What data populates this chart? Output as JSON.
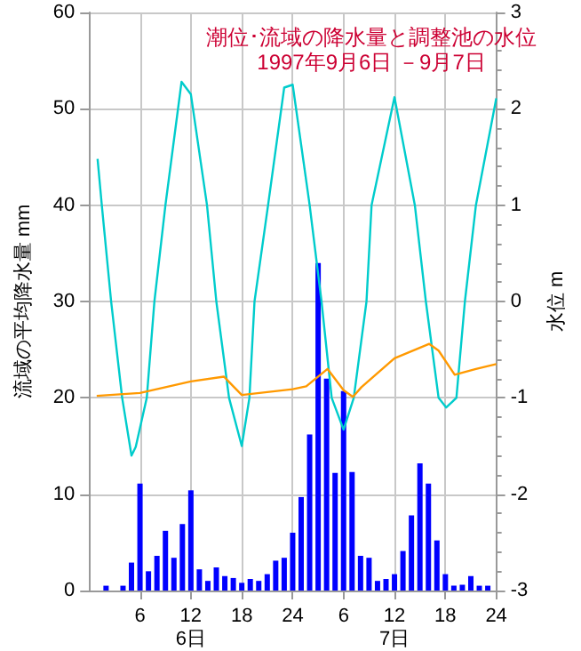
{
  "chart_data": {
    "type": "bar",
    "title": "潮位･流域の降水量と調整池の水位",
    "subtitle": "1997年9月6日 －9月7日",
    "ylabel": "流域の平均降水量 mm",
    "y2label": "水位 m",
    "xlim": [
      "1997-09-06T00:00",
      "1997-09-08T00:00"
    ],
    "xticks": [
      {
        "value": "1997-09-06T06:00",
        "label": "6"
      },
      {
        "value": "1997-09-06T12:00",
        "label": "12\n6日"
      },
      {
        "value": "1997-09-06T18:00",
        "label": "18"
      },
      {
        "value": "1997-09-07T00:00",
        "label": "24"
      },
      {
        "value": "1997-09-07T06:00",
        "label": "6"
      },
      {
        "value": "1997-09-07T12:00",
        "label": "12\n7日"
      },
      {
        "value": "1997-09-07T18:00",
        "label": "18"
      },
      {
        "value": "1997-09-08T00:00",
        "label": "24"
      }
    ],
    "ylim": [
      0,
      60
    ],
    "yticks": [
      0,
      10,
      20,
      30,
      40,
      50,
      60
    ],
    "y2lim": [
      -3,
      3
    ],
    "y2ticks": [
      -3,
      -2,
      -1,
      0,
      1,
      2,
      3
    ],
    "grid": true,
    "series": [
      {
        "color": "#0000ff",
        "x": [
          "1997-09-06T02:00",
          "1997-09-06T04:00",
          "1997-09-06T05:00",
          "1997-09-06T06:00",
          "1997-09-06T07:00",
          "1997-09-06T08:00",
          "1997-09-06T09:00",
          "1997-09-06T10:00",
          "1997-09-06T11:00",
          "1997-09-06T12:00",
          "1997-09-06T13:00",
          "1997-09-06T14:00",
          "1997-09-06T15:00",
          "1997-09-06T16:00",
          "1997-09-06T17:00",
          "1997-09-06T18:00",
          "1997-09-06T19:00",
          "1997-09-06T20:00",
          "1997-09-06T21:00",
          "1997-09-06T22:00",
          "1997-09-06T23:00",
          "1997-09-07T00:00",
          "1997-09-07T01:00",
          "1997-09-07T02:00",
          "1997-09-07T03:00",
          "1997-09-07T04:00",
          "1997-09-07T05:00",
          "1997-09-07T06:00",
          "1997-09-07T07:00",
          "1997-09-07T08:00",
          "1997-09-07T09:00",
          "1997-09-07T10:00",
          "1997-09-07T11:00",
          "1997-09-07T12:00",
          "1997-09-07T13:00",
          "1997-09-07T14:00",
          "1997-09-07T15:00",
          "1997-09-07T16:00",
          "1997-09-07T17:00",
          "1997-09-07T18:00",
          "1997-09-07T19:00",
          "1997-09-07T20:00",
          "1997-09-07T21:00",
          "1997-09-07T22:00",
          "1997-09-07T23:00"
        ],
        "values": [
          0.5,
          0.5,
          2.9,
          11.1,
          2.0,
          3.6,
          6.2,
          3.4,
          6.9,
          10.4,
          2.2,
          1.0,
          2.4,
          1.5,
          1.3,
          0.8,
          1.2,
          1.0,
          1.7,
          3.1,
          3.4,
          6.0,
          9.7,
          16.2,
          34,
          22,
          12.2,
          20.7,
          12.3,
          3.6,
          3.4,
          1.0,
          1.2,
          1.7,
          4.1,
          7.8,
          13.2,
          11.1,
          5.2,
          1.7,
          0.5,
          0.6,
          1.5,
          0.5,
          0.5
        ]
      },
      {
        "type": "line",
        "axis": "y2",
        "color": "#00cccc",
        "x": [
          "1997-09-06T01:00",
          "1997-09-06T01:30",
          "1997-09-06T02:36",
          "1997-09-06T03:54",
          "1997-09-06T05:00",
          "1997-09-06T05:30",
          "1997-09-06T06:48",
          "1997-09-06T07:42",
          "1997-09-06T09:00",
          "1997-09-06T10:54",
          "1997-09-06T12:00",
          "1997-09-06T13:54",
          "1997-09-06T15:00",
          "1997-09-06T16:30",
          "1997-09-06T18:00",
          "1997-09-06T18:54",
          "1997-09-06T19:30",
          "1997-09-06T21:06",
          "1997-09-06T23:00",
          "1997-09-07T00:00",
          "1997-09-07T02:00",
          "1997-09-07T03:24",
          "1997-09-07T04:36",
          "1997-09-07T06:00",
          "1997-09-07T07:12",
          "1997-09-07T08:42",
          "1997-09-07T09:18",
          "1997-09-07T12:00",
          "1997-09-07T14:24",
          "1997-09-07T15:42",
          "1997-09-07T17:12",
          "1997-09-07T18:06",
          "1997-09-07T19:18",
          "1997-09-07T20:18",
          "1997-09-07T21:36",
          "1997-09-08T00:00"
        ],
        "values": [
          1.48,
          1.0,
          0,
          -1,
          -1.6,
          -1.51,
          -1,
          0,
          1,
          2.28,
          2.15,
          1,
          0,
          -1,
          -1.5,
          -1,
          0,
          1,
          2.22,
          2.25,
          1,
          0,
          -1,
          -1.33,
          -1,
          0,
          1,
          2.12,
          1,
          0,
          -1,
          -1.1,
          -1,
          0,
          1,
          2.11
        ]
      },
      {
        "type": "line",
        "axis": "y2",
        "color": "#ff9900",
        "x": [
          "1997-09-06T00:54",
          "1997-09-06T06:00",
          "1997-09-06T12:00",
          "1997-09-06T15:54",
          "1997-09-06T17:06",
          "1997-09-06T18:00",
          "1997-09-07T00:00",
          "1997-09-07T01:36",
          "1997-09-07T04:06",
          "1997-09-07T06:00",
          "1997-09-07T07:06",
          "1997-09-07T08:06",
          "1997-09-07T12:00",
          "1997-09-07T16:06",
          "1997-09-07T17:12",
          "1997-09-07T19:06",
          "1997-09-07T21:36",
          "1997-09-08T00:00"
        ],
        "values": [
          -0.98,
          -0.95,
          -0.83,
          -0.78,
          -0.89,
          -0.97,
          -0.91,
          -0.88,
          -0.7,
          -0.92,
          -0.99,
          -0.89,
          -0.59,
          -0.44,
          -0.51,
          -0.76,
          -0.7,
          -0.65
        ]
      }
    ]
  }
}
